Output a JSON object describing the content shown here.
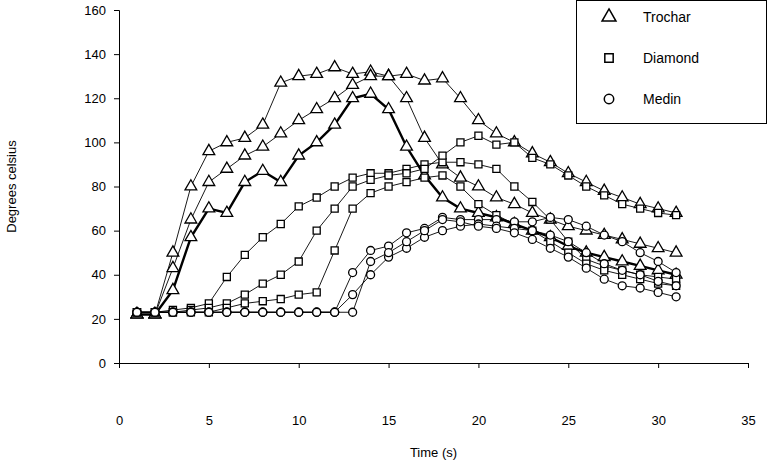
{
  "chart_data": {
    "type": "line",
    "x_label": "Time (s)",
    "y_label": "Degrees celsius",
    "x": [
      1,
      2,
      3,
      4,
      5,
      6,
      7,
      8,
      9,
      10,
      11,
      12,
      13,
      14,
      15,
      16,
      17,
      18,
      19,
      20,
      21,
      22,
      23,
      24,
      25,
      26,
      27,
      28,
      29,
      30,
      31
    ],
    "xlim": [
      0,
      35
    ],
    "xticks": [
      0,
      5,
      10,
      15,
      20,
      25,
      30,
      35
    ],
    "ylim": [
      0,
      160
    ],
    "yticks": [
      0,
      20,
      40,
      60,
      80,
      100,
      120,
      140,
      160
    ],
    "grid": false,
    "legend": "top-right",
    "series": [
      {
        "name": "Trochar",
        "color": "#000000",
        "marker": "triangle",
        "line_style": "solid",
        "values": [
          22,
          22,
          50,
          80,
          96,
          100,
          102,
          108,
          127,
          130,
          131,
          134,
          131,
          132,
          130,
          131,
          128,
          129,
          120,
          110,
          104,
          100,
          95,
          91,
          86,
          82,
          78,
          75,
          72,
          70,
          68
        ]
      },
      {
        "name": "Trochar",
        "color": "#000000",
        "marker": "triangle",
        "line_style": "solid",
        "values": [
          22,
          22,
          43,
          65,
          82,
          88,
          94,
          98,
          104,
          110,
          115,
          120,
          126,
          130,
          130,
          120,
          102,
          90,
          84,
          80,
          75,
          72,
          68,
          65,
          62,
          60,
          58,
          56,
          54,
          52,
          50
        ]
      },
      {
        "name": "Trochar",
        "color": "#000000",
        "marker": "triangle",
        "line_style": "bold",
        "values": [
          22,
          22,
          33,
          57,
          70,
          68,
          82,
          87,
          82,
          94,
          100,
          108,
          120,
          122,
          115,
          98,
          85,
          75,
          70,
          68,
          66,
          63,
          60,
          57,
          53,
          50,
          48,
          46,
          44,
          42,
          40
        ]
      },
      {
        "name": "Diamond",
        "color": "#000000",
        "marker": "square",
        "line_style": "solid",
        "values": [
          23,
          23,
          24,
          25,
          27,
          39,
          49,
          57,
          63,
          71,
          75,
          80,
          84,
          86,
          86,
          88,
          90,
          91,
          91,
          90,
          88,
          80,
          73,
          65,
          55,
          47,
          44,
          42,
          40,
          39,
          38
        ]
      },
      {
        "name": "Diamond",
        "color": "#000000",
        "marker": "square",
        "line_style": "solid",
        "values": [
          23,
          23,
          23,
          24,
          25,
          27,
          31,
          36,
          40,
          46,
          60,
          70,
          80,
          83,
          85,
          86,
          88,
          94,
          100,
          103,
          99,
          100,
          93,
          90,
          85,
          80,
          76,
          72,
          70,
          68,
          67
        ]
      },
      {
        "name": "Diamond",
        "color": "#000000",
        "marker": "square",
        "line_style": "solid",
        "values": [
          23,
          23,
          23,
          23,
          23,
          25,
          27,
          28,
          29,
          31,
          32,
          51,
          70,
          77,
          80,
          82,
          84,
          85,
          80,
          72,
          67,
          63,
          60,
          55,
          50,
          45,
          42,
          40,
          38,
          36,
          35
        ]
      },
      {
        "name": "Medin",
        "color": "#000000",
        "marker": "circle",
        "line_style": "solid",
        "values": [
          23,
          23,
          23,
          23,
          23,
          23,
          23,
          23,
          23,
          23,
          23,
          23,
          41,
          51,
          53,
          59,
          61,
          66,
          65,
          65,
          65,
          64,
          64,
          66,
          65,
          62,
          58,
          55,
          50,
          46,
          41
        ]
      },
      {
        "name": "Medin",
        "color": "#000000",
        "marker": "circle",
        "line_style": "solid",
        "values": [
          23,
          23,
          23,
          23,
          23,
          23,
          23,
          23,
          23,
          23,
          23,
          23,
          31,
          40,
          48,
          52,
          57,
          60,
          62,
          63,
          62,
          61,
          60,
          58,
          55,
          50,
          45,
          42,
          40,
          37,
          35
        ]
      },
      {
        "name": "Medin",
        "color": "#000000",
        "marker": "circle",
        "line_style": "solid",
        "values": [
          23,
          23,
          23,
          23,
          23,
          23,
          23,
          23,
          23,
          23,
          23,
          23,
          23,
          46,
          50,
          55,
          60,
          65,
          64,
          62,
          61,
          59,
          56,
          52,
          48,
          43,
          38,
          35,
          34,
          32,
          30
        ]
      }
    ]
  }
}
